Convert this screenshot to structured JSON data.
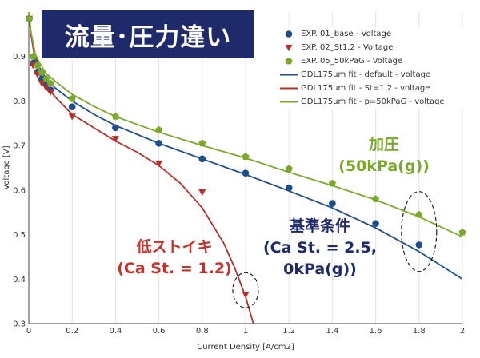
{
  "banner": {
    "title": "流量･圧力違い"
  },
  "annotations": {
    "green_line1": "加圧",
    "green_line2": "(50kPa(g))",
    "blue_line1": "基準条件",
    "blue_line2": "(Ca St. = 2.5,",
    "blue_line3": "0kPa(g))",
    "red_line1": "低ストイキ",
    "red_line2": "(Ca St. = 1.2)"
  },
  "colors": {
    "blue": "#1f4e8c",
    "red": "#b5302a",
    "green": "#7aa82b",
    "banner_bg": "#1f2a6b",
    "annot_green": "#7aa82b",
    "annot_blue": "#1f2a6b",
    "annot_red": "#c8312a"
  },
  "chart_data": {
    "type": "scatter",
    "xlabel": "Current Density [A/cm2]",
    "ylabel": "Voltage [V]",
    "xlim": [
      0,
      2
    ],
    "ylim": [
      0.3,
      1.0
    ],
    "xticks": [
      "0",
      "0.2",
      "0.4",
      "0.6",
      "0.8",
      "1",
      "1.2",
      "1.4",
      "1.6",
      "1.8",
      "2"
    ],
    "yticks": [
      "0.3",
      "0.4",
      "0.5",
      "0.6",
      "0.7",
      "0.8",
      "0.9"
    ],
    "grid": "vertical",
    "legend_position": "top-right",
    "series": [
      {
        "name": "EXP. 01_base - Voltage",
        "kind": "points",
        "marker": "circle",
        "color": "#1f4e8c",
        "x": [
          0.002,
          0.02,
          0.04,
          0.06,
          0.08,
          0.1,
          0.2,
          0.4,
          0.6,
          0.8,
          1.0,
          1.2,
          1.4,
          1.6,
          1.8
        ],
        "y": [
          0.985,
          0.885,
          0.865,
          0.85,
          0.84,
          0.825,
          0.787,
          0.74,
          0.705,
          0.67,
          0.638,
          0.605,
          0.57,
          0.525,
          0.477
        ]
      },
      {
        "name": "EXP. 02_St1.2 - Voltage",
        "kind": "points",
        "marker": "triangle",
        "color": "#b5302a",
        "x": [
          0.002,
          0.02,
          0.04,
          0.06,
          0.08,
          0.1,
          0.2,
          0.4,
          0.6,
          0.8,
          1.0
        ],
        "y": [
          0.985,
          0.88,
          0.86,
          0.84,
          0.83,
          0.82,
          0.765,
          0.715,
          0.66,
          0.595,
          0.365
        ]
      },
      {
        "name": "EXP. 05_50kPaG - Voltage",
        "kind": "points",
        "marker": "pentagon",
        "color": "#7aa82b",
        "x": [
          0.002,
          0.02,
          0.04,
          0.06,
          0.08,
          0.1,
          0.2,
          0.4,
          0.6,
          0.8,
          1.0,
          1.2,
          1.4,
          1.6,
          1.8,
          2.0
        ],
        "y": [
          0.985,
          0.9,
          0.88,
          0.865,
          0.85,
          0.84,
          0.805,
          0.765,
          0.735,
          0.705,
          0.675,
          0.648,
          0.615,
          0.58,
          0.545,
          0.505
        ]
      },
      {
        "name": "GDL175um fit - default - voltage",
        "kind": "line",
        "color": "#1f4e8c",
        "x": [
          0,
          0.01,
          0.03,
          0.05,
          0.08,
          0.12,
          0.2,
          0.3,
          0.4,
          0.6,
          0.8,
          1.0,
          1.2,
          1.4,
          1.6,
          1.8,
          2.0
        ],
        "y": [
          1.0,
          0.95,
          0.9,
          0.875,
          0.85,
          0.83,
          0.8,
          0.77,
          0.745,
          0.705,
          0.67,
          0.635,
          0.598,
          0.56,
          0.515,
          0.462,
          0.4
        ]
      },
      {
        "name": "GDL175um fit - St=1.2 - voltage",
        "kind": "line",
        "color": "#b5302a",
        "x": [
          0,
          0.01,
          0.03,
          0.05,
          0.08,
          0.12,
          0.2,
          0.3,
          0.4,
          0.5,
          0.6,
          0.7,
          0.8,
          0.9,
          0.95,
          1.0,
          1.03,
          1.06
        ],
        "y": [
          1.0,
          0.95,
          0.89,
          0.86,
          0.835,
          0.81,
          0.77,
          0.74,
          0.71,
          0.685,
          0.655,
          0.615,
          0.56,
          0.48,
          0.425,
          0.36,
          0.31,
          0.255
        ]
      },
      {
        "name": "GDL175um fit - p=50kPaG - voltage",
        "kind": "line",
        "color": "#7aa82b",
        "x": [
          0,
          0.01,
          0.03,
          0.05,
          0.08,
          0.12,
          0.2,
          0.3,
          0.4,
          0.6,
          0.8,
          1.0,
          1.2,
          1.4,
          1.6,
          1.8,
          2.0
        ],
        "y": [
          1.0,
          0.955,
          0.905,
          0.885,
          0.862,
          0.845,
          0.815,
          0.788,
          0.765,
          0.73,
          0.7,
          0.672,
          0.64,
          0.61,
          0.578,
          0.54,
          0.495
        ]
      }
    ]
  }
}
